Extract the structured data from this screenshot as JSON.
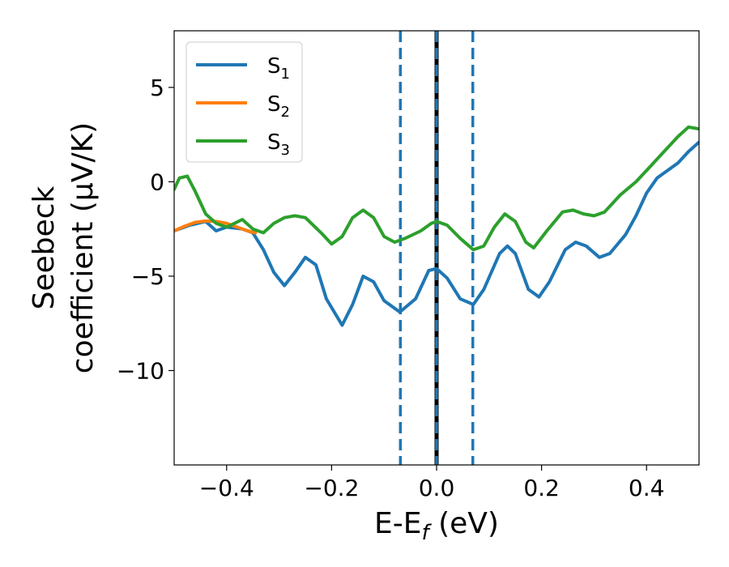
{
  "chart_data": {
    "type": "line",
    "xlabel_main": "E-E",
    "xlabel_sub": "f",
    "xlabel_unit": " (eV)",
    "ylabel_line1": "Seebeck",
    "ylabel_line2": "coefficient  (μV/K)",
    "xlim": [
      -0.5,
      0.5
    ],
    "ylim": [
      -15,
      8
    ],
    "xticks": [
      -0.4,
      -0.2,
      0.0,
      0.2,
      0.4
    ],
    "xtick_labels": [
      "−0.4",
      "−0.2",
      "0.0",
      "0.2",
      "0.4"
    ],
    "yticks": [
      -10,
      -5,
      0,
      5
    ],
    "ytick_labels": [
      "−10",
      "−5",
      "0",
      "5"
    ],
    "grid": false,
    "legend_position": "top-left",
    "vertical_lines": [
      {
        "x": -0.069,
        "style": "dashed",
        "color": "#1f77b4"
      },
      {
        "x": 0.069,
        "style": "dashed",
        "color": "#1f77b4"
      },
      {
        "x": 0.0,
        "style": "solid",
        "color": "#000000"
      },
      {
        "x": 0.0,
        "style": "dashed",
        "color": "#1f77b4"
      }
    ],
    "series": [
      {
        "name": "S",
        "subscript": "1",
        "color": "#1f77b4",
        "points": [
          [
            -0.5,
            -2.6
          ],
          [
            -0.47,
            -2.3
          ],
          [
            -0.44,
            -2.1
          ],
          [
            -0.42,
            -2.6
          ],
          [
            -0.4,
            -2.4
          ],
          [
            -0.37,
            -2.5
          ],
          [
            -0.35,
            -2.7
          ],
          [
            -0.33,
            -3.6
          ],
          [
            -0.31,
            -4.8
          ],
          [
            -0.29,
            -5.5
          ],
          [
            -0.27,
            -4.8
          ],
          [
            -0.25,
            -4.0
          ],
          [
            -0.23,
            -4.4
          ],
          [
            -0.21,
            -6.2
          ],
          [
            -0.18,
            -7.6
          ],
          [
            -0.16,
            -6.5
          ],
          [
            -0.14,
            -5.0
          ],
          [
            -0.12,
            -5.3
          ],
          [
            -0.1,
            -6.3
          ],
          [
            -0.07,
            -6.9
          ],
          [
            -0.04,
            -6.2
          ],
          [
            -0.015,
            -4.7
          ],
          [
            0.0,
            -4.6
          ],
          [
            0.02,
            -5.1
          ],
          [
            0.045,
            -6.2
          ],
          [
            0.07,
            -6.5
          ],
          [
            0.09,
            -5.7
          ],
          [
            0.12,
            -3.8
          ],
          [
            0.135,
            -3.4
          ],
          [
            0.15,
            -3.8
          ],
          [
            0.175,
            -5.7
          ],
          [
            0.195,
            -6.1
          ],
          [
            0.215,
            -5.3
          ],
          [
            0.245,
            -3.6
          ],
          [
            0.265,
            -3.2
          ],
          [
            0.285,
            -3.4
          ],
          [
            0.31,
            -4.0
          ],
          [
            0.33,
            -3.8
          ],
          [
            0.36,
            -2.8
          ],
          [
            0.38,
            -1.8
          ],
          [
            0.4,
            -0.6
          ],
          [
            0.42,
            0.2
          ],
          [
            0.44,
            0.6
          ],
          [
            0.46,
            1.0
          ],
          [
            0.48,
            1.6
          ],
          [
            0.5,
            2.1
          ]
        ]
      },
      {
        "name": "S",
        "subscript": "2",
        "color": "#ff7f0e",
        "points": [
          [
            -0.5,
            -2.6
          ],
          [
            -0.48,
            -2.35
          ],
          [
            -0.46,
            -2.15
          ],
          [
            -0.44,
            -2.08
          ],
          [
            -0.42,
            -2.1
          ],
          [
            -0.4,
            -2.2
          ],
          [
            -0.38,
            -2.4
          ],
          [
            -0.36,
            -2.6
          ],
          [
            -0.345,
            -2.7
          ]
        ]
      },
      {
        "name": "S",
        "subscript": "3",
        "color": "#2ca02c",
        "points": [
          [
            -0.5,
            -0.4
          ],
          [
            -0.49,
            0.2
          ],
          [
            -0.475,
            0.3
          ],
          [
            -0.46,
            -0.5
          ],
          [
            -0.44,
            -1.7
          ],
          [
            -0.42,
            -2.2
          ],
          [
            -0.4,
            -2.4
          ],
          [
            -0.385,
            -2.2
          ],
          [
            -0.37,
            -2.0
          ],
          [
            -0.35,
            -2.5
          ],
          [
            -0.33,
            -2.7
          ],
          [
            -0.31,
            -2.2
          ],
          [
            -0.29,
            -1.9
          ],
          [
            -0.27,
            -1.8
          ],
          [
            -0.25,
            -1.9
          ],
          [
            -0.22,
            -2.7
          ],
          [
            -0.2,
            -3.3
          ],
          [
            -0.18,
            -2.9
          ],
          [
            -0.16,
            -1.9
          ],
          [
            -0.14,
            -1.5
          ],
          [
            -0.12,
            -1.9
          ],
          [
            -0.1,
            -2.9
          ],
          [
            -0.08,
            -3.2
          ],
          [
            -0.06,
            -3.0
          ],
          [
            -0.03,
            -2.6
          ],
          [
            -0.01,
            -2.2
          ],
          [
            0.0,
            -2.1
          ],
          [
            0.02,
            -2.3
          ],
          [
            0.045,
            -3.0
          ],
          [
            0.07,
            -3.6
          ],
          [
            0.09,
            -3.4
          ],
          [
            0.11,
            -2.4
          ],
          [
            0.13,
            -1.7
          ],
          [
            0.15,
            -2.1
          ],
          [
            0.17,
            -3.2
          ],
          [
            0.185,
            -3.5
          ],
          [
            0.21,
            -2.6
          ],
          [
            0.24,
            -1.6
          ],
          [
            0.26,
            -1.5
          ],
          [
            0.28,
            -1.7
          ],
          [
            0.3,
            -1.8
          ],
          [
            0.32,
            -1.6
          ],
          [
            0.35,
            -0.7
          ],
          [
            0.38,
            0.0
          ],
          [
            0.4,
            0.6
          ],
          [
            0.43,
            1.5
          ],
          [
            0.46,
            2.4
          ],
          [
            0.48,
            2.9
          ],
          [
            0.5,
            2.8
          ]
        ]
      }
    ]
  }
}
